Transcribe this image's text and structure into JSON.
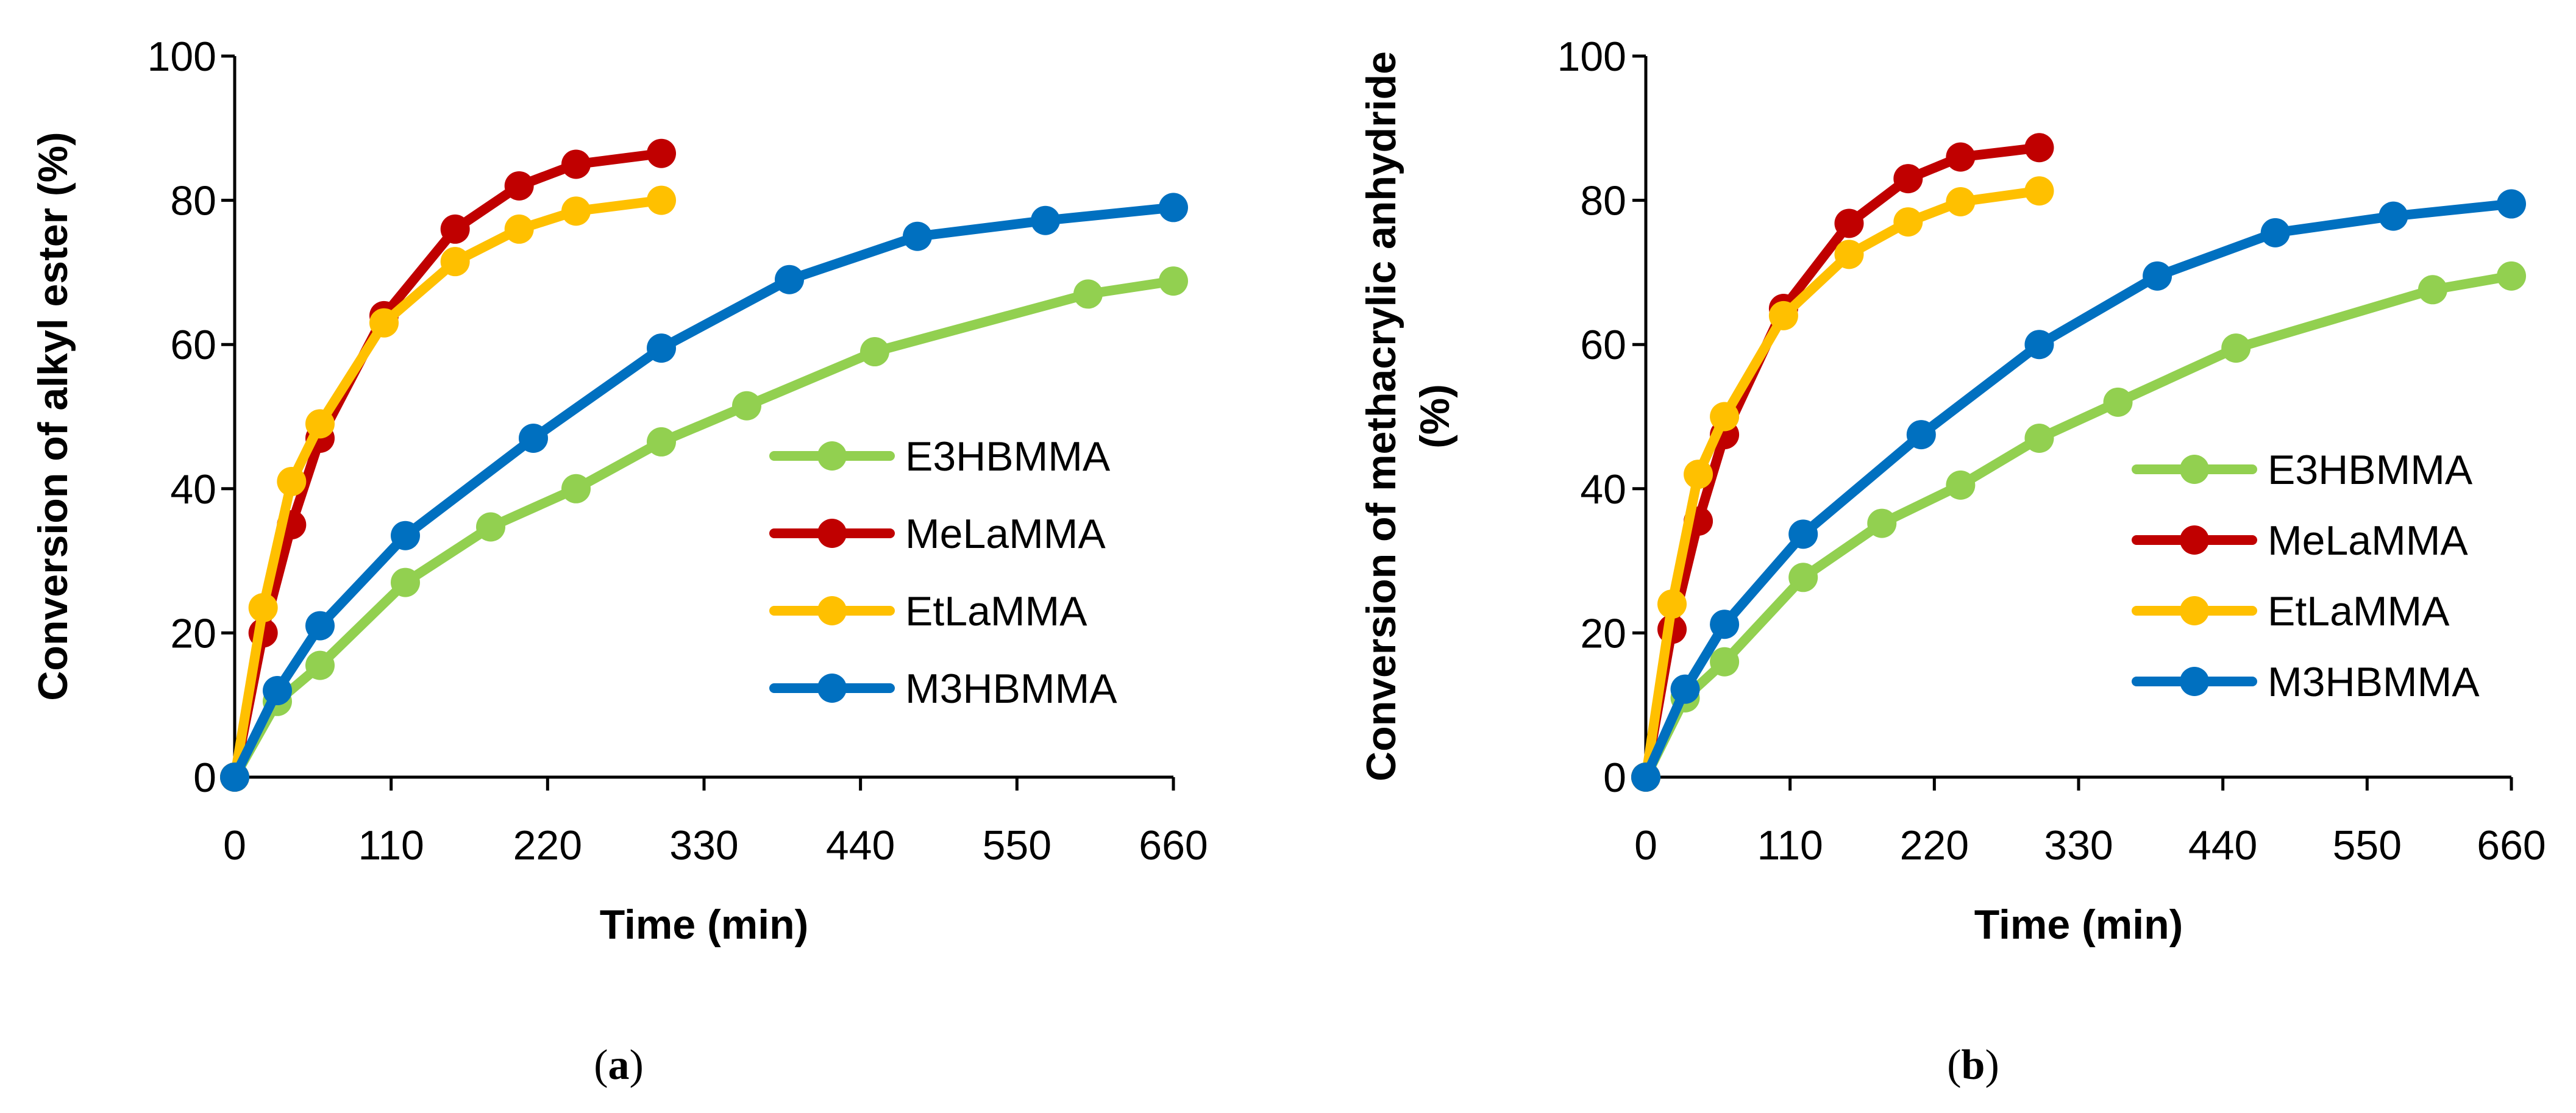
{
  "chart_data": [
    {
      "id": "a",
      "type": "line",
      "caption": {
        "open": "(",
        "letter": "a",
        "close": ")"
      },
      "title": "",
      "xlabel": "Time (min)",
      "ylabel_lines": [
        "Conversion of alkyl ester (%)"
      ],
      "xlim": [
        0,
        660
      ],
      "ylim": [
        0,
        100
      ],
      "xticks": [
        0,
        110,
        220,
        330,
        440,
        550,
        660
      ],
      "yticks": [
        0,
        20,
        40,
        60,
        80,
        100
      ],
      "grid": false,
      "legend_position": "right",
      "series": [
        {
          "name": "E3HBMMA",
          "color": "#92d050",
          "x": [
            0,
            30,
            60,
            120,
            180,
            240,
            300,
            360,
            450,
            600,
            660
          ],
          "y": [
            0,
            10.5,
            15.5,
            27,
            34.7,
            40,
            46.5,
            51.5,
            59,
            67,
            68.8
          ]
        },
        {
          "name": "MeLaMMA",
          "color": "#c00000",
          "x": [
            0,
            20,
            40,
            60,
            105,
            155,
            200,
            240,
            300
          ],
          "y": [
            0,
            20,
            35,
            47,
            64,
            76,
            82,
            85,
            86.5
          ]
        },
        {
          "name": "EtLaMMA",
          "color": "#ffc000",
          "x": [
            0,
            20,
            40,
            60,
            105,
            155,
            200,
            240,
            300
          ],
          "y": [
            0,
            23.5,
            41,
            49,
            63,
            71.5,
            76,
            78.5,
            80
          ]
        },
        {
          "name": "M3HBMMA",
          "color": "#0070c0",
          "x": [
            0,
            30,
            60,
            120,
            210,
            300,
            390,
            480,
            570,
            660
          ],
          "y": [
            0,
            12,
            21,
            33.5,
            47,
            59.5,
            69,
            75,
            77.2,
            79
          ]
        }
      ]
    },
    {
      "id": "b",
      "type": "line",
      "caption": {
        "open": "(",
        "letter": "b",
        "close": ")"
      },
      "title": "",
      "xlabel": "Time (min)",
      "ylabel_lines": [
        "Conversion of methacrylic anhydride",
        "(%)"
      ],
      "xlim": [
        0,
        660
      ],
      "ylim": [
        0,
        100
      ],
      "xticks": [
        0,
        110,
        220,
        330,
        440,
        550,
        660
      ],
      "yticks": [
        0,
        20,
        40,
        60,
        80,
        100
      ],
      "grid": false,
      "legend_position": "right",
      "series": [
        {
          "name": "E3HBMMA",
          "color": "#92d050",
          "x": [
            0,
            30,
            60,
            120,
            180,
            240,
            300,
            360,
            450,
            600,
            660
          ],
          "y": [
            0,
            11,
            16,
            27.7,
            35.2,
            40.5,
            47,
            52,
            59.5,
            67.6,
            69.5
          ]
        },
        {
          "name": "MeLaMMA",
          "color": "#c00000",
          "x": [
            0,
            20,
            40,
            60,
            105,
            155,
            200,
            240,
            300
          ],
          "y": [
            0,
            20.5,
            35.5,
            47.5,
            65,
            76.8,
            83,
            86,
            87.3
          ]
        },
        {
          "name": "EtLaMMA",
          "color": "#ffc000",
          "x": [
            0,
            20,
            40,
            60,
            105,
            155,
            200,
            240,
            300
          ],
          "y": [
            0,
            24,
            42,
            50,
            64,
            72.5,
            77,
            79.8,
            81.3
          ]
        },
        {
          "name": "M3HBMMA",
          "color": "#0070c0",
          "x": [
            0,
            30,
            60,
            120,
            210,
            300,
            390,
            480,
            570,
            660
          ],
          "y": [
            0,
            12.2,
            21.2,
            33.7,
            47.5,
            60,
            69.5,
            75.5,
            77.8,
            79.5
          ]
        }
      ]
    }
  ]
}
